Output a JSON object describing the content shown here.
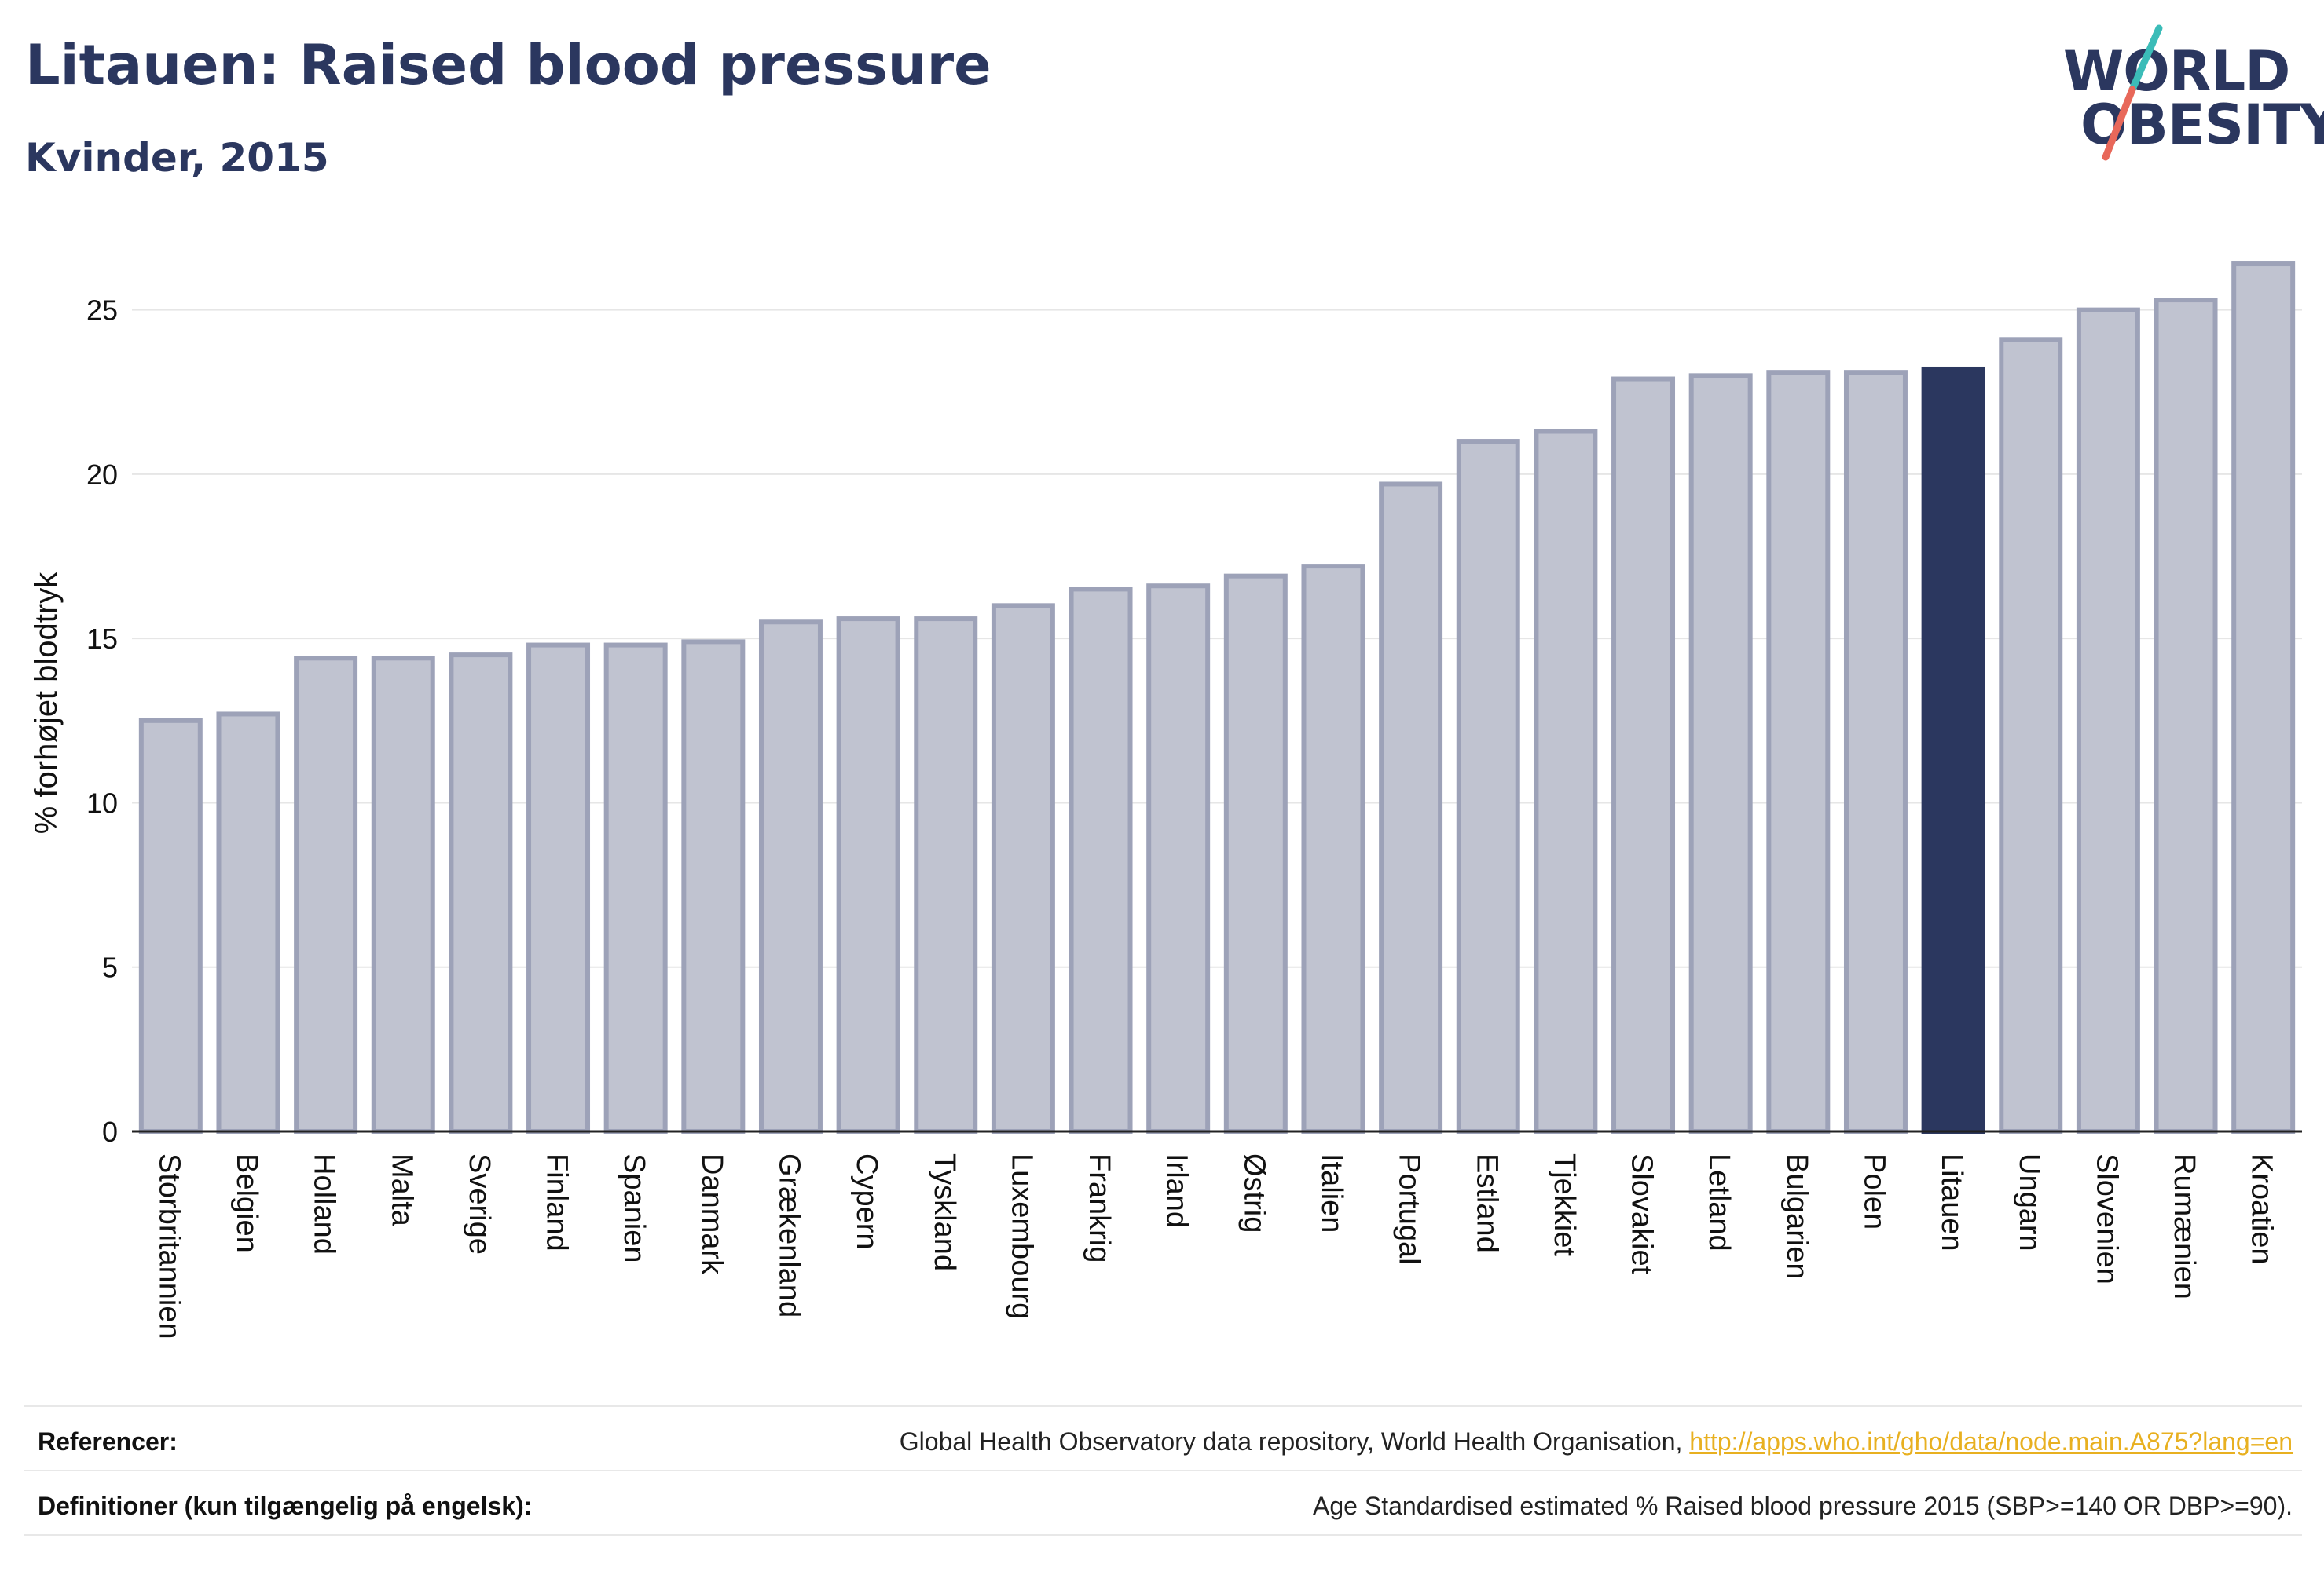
{
  "header": {
    "title": "Litauen: Raised blood pressure",
    "subtitle": "Kvinder, 2015"
  },
  "logo": {
    "line1": "WORLD",
    "line2": "OBESITY",
    "colors": {
      "text": "#2b375f",
      "slash_top": "#3bbcb8",
      "slash_bottom": "#e8685a"
    }
  },
  "chart_data": {
    "type": "bar",
    "ylabel": "% forhøjet blodtryk",
    "xlabel": "",
    "ylim": [
      0,
      27.5
    ],
    "yticks": [
      0,
      5,
      10,
      15,
      20,
      25
    ],
    "grid": true,
    "highlight": "Litauen",
    "colors": {
      "bar": "#c0c3d0",
      "bar_border": "#9da2b8",
      "highlight": "#2b375f",
      "grid": "#e6e6e6"
    },
    "categories": [
      "Storbritannien",
      "Belgien",
      "Holland",
      "Malta",
      "Sverige",
      "Finland",
      "Spanien",
      "Danmark",
      "Grækenland",
      "Cypern",
      "Tyskland",
      "Luxembourg",
      "Frankrig",
      "Irland",
      "Østrig",
      "Italien",
      "Portugal",
      "Estland",
      "Tjekkiet",
      "Slovakiet",
      "Letland",
      "Bulgarien",
      "Polen",
      "Litauen",
      "Ungarn",
      "Slovenien",
      "Rumænien",
      "Kroatien"
    ],
    "values": [
      12.5,
      12.7,
      14.4,
      14.4,
      14.5,
      14.8,
      14.8,
      14.9,
      15.5,
      15.6,
      15.6,
      16.0,
      16.5,
      16.6,
      16.9,
      17.2,
      19.7,
      21.0,
      21.3,
      22.9,
      23.0,
      23.1,
      23.1,
      23.2,
      24.1,
      25.0,
      25.3,
      26.4
    ]
  },
  "footer": {
    "references_label": "Referencer:",
    "references_text": "Global Health Observatory data repository, World Health Organisation, ",
    "references_link": "http://apps.who.int/gho/data/node.main.A875?lang=en",
    "definitions_label": "Definitioner (kun tilgængelig på engelsk):",
    "definitions_text": "Age Standardised estimated % Raised blood pressure 2015 (SBP>=140 OR DBP>=90)."
  }
}
